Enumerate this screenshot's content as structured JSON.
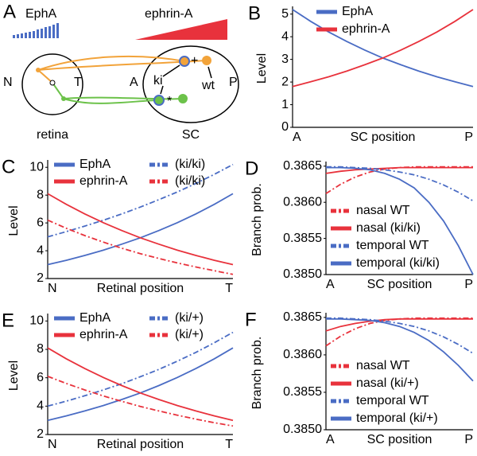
{
  "diagram": {
    "panel": "A",
    "epha": "EphA",
    "ephrin": "ephrin-A",
    "n": "N",
    "t": "T",
    "a": "A",
    "p": "P",
    "ki": "ki",
    "wt": "wt",
    "star": "*",
    "plus": "+",
    "retina": "retina",
    "sc": "SC"
  },
  "chart_data": [
    {
      "type": "line",
      "panel": "B",
      "ylabel": "Level",
      "xlabel": "SC position",
      "categories": [
        "A",
        null,
        null,
        null,
        null,
        null,
        null,
        null,
        null,
        null,
        "P"
      ],
      "ylim": [
        0,
        5.2
      ],
      "yticks": [
        0,
        1,
        2,
        3,
        4,
        5
      ],
      "legend": "upper right",
      "legend_columns": 1,
      "series": [
        {
          "name": "EphA",
          "color": "#4a6cc4",
          "style": "solid",
          "values": [
            5.2,
            4.68,
            4.21,
            3.79,
            3.41,
            3.06,
            2.76,
            2.48,
            2.23,
            2.01,
            1.8
          ]
        },
        {
          "name": "ephrin-A",
          "color": "#e8323c",
          "style": "solid",
          "values": [
            1.8,
            2.01,
            2.23,
            2.48,
            2.76,
            3.06,
            3.41,
            3.79,
            4.21,
            4.68,
            5.2
          ]
        }
      ]
    },
    {
      "type": "line",
      "panel": "C",
      "ylabel": "Level",
      "xlabel": "Retinal position",
      "categories": [
        "N",
        null,
        null,
        null,
        null,
        null,
        null,
        null,
        null,
        null,
        "T"
      ],
      "ylim": [
        2,
        10.3
      ],
      "yticks": [
        2,
        4,
        6,
        8,
        10
      ],
      "legend": "upper left",
      "legend_columns": 2,
      "series": [
        {
          "name": "EphA",
          "color": "#4a6cc4",
          "style": "solid",
          "values": [
            3.0,
            3.31,
            3.66,
            4.04,
            4.47,
            4.93,
            5.45,
            6.02,
            6.65,
            7.34,
            8.1
          ]
        },
        {
          "name": "(ki/ki)",
          "color": "#4a6cc4",
          "style": "dashdot",
          "values": [
            5.0,
            5.37,
            5.77,
            6.19,
            6.65,
            7.14,
            7.67,
            8.23,
            8.84,
            9.5,
            10.2
          ]
        },
        {
          "name": "ephrin-A",
          "color": "#e8323c",
          "style": "solid",
          "values": [
            8.1,
            7.34,
            6.65,
            6.02,
            5.45,
            4.93,
            4.47,
            4.04,
            3.66,
            3.31,
            3.0
          ]
        },
        {
          "name": "(ki/ki)",
          "color": "#e8323c",
          "style": "dashdot",
          "values": [
            6.2,
            5.62,
            5.09,
            4.62,
            4.18,
            3.79,
            3.44,
            3.12,
            2.83,
            2.56,
            2.3
          ]
        }
      ]
    },
    {
      "type": "line",
      "panel": "D",
      "ylabel": "Branch prob.",
      "xlabel": "SC position",
      "categories": [
        "A",
        null,
        null,
        null,
        null,
        null,
        null,
        null,
        null,
        null,
        "P"
      ],
      "ylim": [
        0.385,
        0.38652
      ],
      "yticks": [
        {
          "value": 0.385,
          "label": "0.3850"
        },
        0.3855,
        {
          "value": 0.386,
          "label": "0.3860"
        },
        0.3865
      ],
      "legend": "lower left",
      "legend_columns": 1,
      "series": [
        {
          "name": "nasal WT",
          "color": "#e8323c",
          "style": "dashdot",
          "values": [
            0.38612,
            0.38625,
            0.38635,
            0.38642,
            0.38646,
            0.38648,
            0.38649,
            0.38649,
            0.38649,
            0.38649,
            0.38649
          ]
        },
        {
          "name": "nasal (ki/ki)",
          "color": "#e8323c",
          "style": "solid",
          "values": [
            0.3864,
            0.38643,
            0.38645,
            0.38646,
            0.38647,
            0.38648,
            0.38648,
            0.38648,
            0.38648,
            0.38648,
            0.38648
          ]
        },
        {
          "name": "temporal WT",
          "color": "#4a6cc4",
          "style": "dashdot",
          "values": [
            0.38649,
            0.38649,
            0.38648,
            0.38647,
            0.38645,
            0.38642,
            0.38638,
            0.38632,
            0.38624,
            0.38614,
            0.38602
          ]
        },
        {
          "name": "temporal (ki/ki)",
          "color": "#4a6cc4",
          "style": "solid",
          "values": [
            0.38648,
            0.38648,
            0.38647,
            0.38645,
            0.3864,
            0.38632,
            0.3862,
            0.386,
            0.38574,
            0.3854,
            0.385
          ]
        }
      ]
    },
    {
      "type": "line",
      "panel": "E",
      "ylabel": "Level",
      "xlabel": "Retinal position",
      "categories": [
        "N",
        null,
        null,
        null,
        null,
        null,
        null,
        null,
        null,
        null,
        "T"
      ],
      "ylim": [
        2,
        10.3
      ],
      "yticks": [
        2,
        4,
        6,
        8,
        10
      ],
      "legend": "upper left",
      "legend_columns": 2,
      "series": [
        {
          "name": "EphA",
          "color": "#4a6cc4",
          "style": "solid",
          "values": [
            3.0,
            3.31,
            3.66,
            4.04,
            4.47,
            4.93,
            5.45,
            6.02,
            6.65,
            7.34,
            8.1
          ]
        },
        {
          "name": "(ki/+)",
          "color": "#4a6cc4",
          "style": "dashdot",
          "values": [
            4.0,
            4.35,
            4.73,
            5.14,
            5.58,
            6.07,
            6.59,
            7.17,
            7.79,
            8.47,
            9.2
          ]
        },
        {
          "name": "ephrin-A",
          "color": "#e8323c",
          "style": "solid",
          "values": [
            8.1,
            7.34,
            6.65,
            6.02,
            5.45,
            4.93,
            4.47,
            4.04,
            3.66,
            3.31,
            3.0
          ]
        },
        {
          "name": "(ki/+)",
          "color": "#e8323c",
          "style": "dashdot",
          "values": [
            6.1,
            5.6,
            5.14,
            4.72,
            4.34,
            3.98,
            3.66,
            3.36,
            3.08,
            2.83,
            2.6
          ]
        }
      ]
    },
    {
      "type": "line",
      "panel": "F",
      "ylabel": "Branch prob.",
      "xlabel": "SC position",
      "categories": [
        "A",
        null,
        null,
        null,
        null,
        null,
        null,
        null,
        null,
        null,
        "P"
      ],
      "ylim": [
        0.385,
        0.38652
      ],
      "yticks": [
        {
          "value": 0.385,
          "label": "0.3850"
        },
        0.3855,
        {
          "value": 0.386,
          "label": "0.3860"
        },
        0.3865
      ],
      "legend": "lower left",
      "legend_columns": 1,
      "series": [
        {
          "name": "nasal WT",
          "color": "#e8323c",
          "style": "dashdot",
          "values": [
            0.38612,
            0.38625,
            0.38635,
            0.38642,
            0.38646,
            0.38648,
            0.38649,
            0.38649,
            0.38649,
            0.38649,
            0.38649
          ]
        },
        {
          "name": "nasal (ki/+)",
          "color": "#e8323c",
          "style": "solid",
          "values": [
            0.38632,
            0.38638,
            0.38642,
            0.38645,
            0.38647,
            0.38648,
            0.38648,
            0.38648,
            0.38648,
            0.38648,
            0.38648
          ]
        },
        {
          "name": "temporal WT",
          "color": "#4a6cc4",
          "style": "dashdot",
          "values": [
            0.38649,
            0.38649,
            0.38648,
            0.38647,
            0.38645,
            0.38642,
            0.38638,
            0.38632,
            0.38624,
            0.38614,
            0.38602
          ]
        },
        {
          "name": "temporal (ki/+)",
          "color": "#4a6cc4",
          "style": "solid",
          "values": [
            0.38648,
            0.38648,
            0.38647,
            0.38646,
            0.38643,
            0.38638,
            0.3863,
            0.38619,
            0.38604,
            0.38586,
            0.38565
          ]
        }
      ]
    }
  ]
}
